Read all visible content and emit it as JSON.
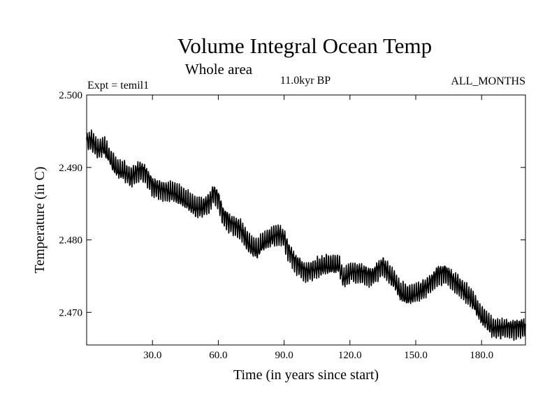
{
  "chart_data": {
    "type": "line",
    "title": "Volume Integral Ocean Temp",
    "subtitle": "Whole area",
    "annotations": {
      "experiment": "Expt = temil1",
      "period": "11.0kyr BP",
      "months": "ALL_MONTHS"
    },
    "xlabel": "Time (in years since start)",
    "ylabel": "Temperature (in C)",
    "xlim": [
      0,
      200
    ],
    "ylim": [
      2.4655,
      2.5
    ],
    "xticks": [
      30,
      60,
      90,
      120,
      150,
      180
    ],
    "xtick_labels": [
      "30.0",
      "60.0",
      "90.0",
      "120.0",
      "150.0",
      "180.0"
    ],
    "yticks": [
      2.47,
      2.48,
      2.49,
      2.5
    ],
    "ytick_labels": [
      "2.470",
      "2.480",
      "2.490",
      "2.500"
    ],
    "grid": false,
    "legend": "none",
    "series": [
      {
        "name": "Volume Integral Ocean Temp",
        "color": "#000000",
        "x": [
          0,
          2,
          5,
          8,
          12,
          15,
          17,
          20,
          23,
          26,
          30,
          35,
          40,
          45,
          50,
          53,
          56,
          58,
          60,
          62,
          65,
          70,
          75,
          78,
          80,
          85,
          88,
          90,
          92,
          95,
          100,
          105,
          110,
          115,
          117,
          120,
          125,
          130,
          135,
          140,
          143,
          146,
          150,
          155,
          160,
          163,
          166,
          170,
          175,
          178,
          180,
          185,
          190,
          195,
          200
        ],
        "values": [
          2.4935,
          2.4938,
          2.4925,
          2.4928,
          2.4905,
          2.4895,
          2.4895,
          2.4885,
          2.4895,
          2.4895,
          2.4875,
          2.4868,
          2.4865,
          2.4855,
          2.4843,
          2.4845,
          2.4852,
          2.4865,
          2.4858,
          2.4835,
          2.4825,
          2.4815,
          2.479,
          2.4785,
          2.4795,
          2.4805,
          2.4808,
          2.4802,
          2.4785,
          2.477,
          2.4755,
          2.4762,
          2.4765,
          2.4765,
          2.4745,
          2.4755,
          2.4755,
          2.475,
          2.4765,
          2.4745,
          2.4728,
          2.4723,
          2.4725,
          2.4735,
          2.4752,
          2.4755,
          2.4748,
          2.4735,
          2.472,
          2.4705,
          2.4695,
          2.4678,
          2.4678,
          2.4678,
          2.468
        ]
      }
    ]
  }
}
